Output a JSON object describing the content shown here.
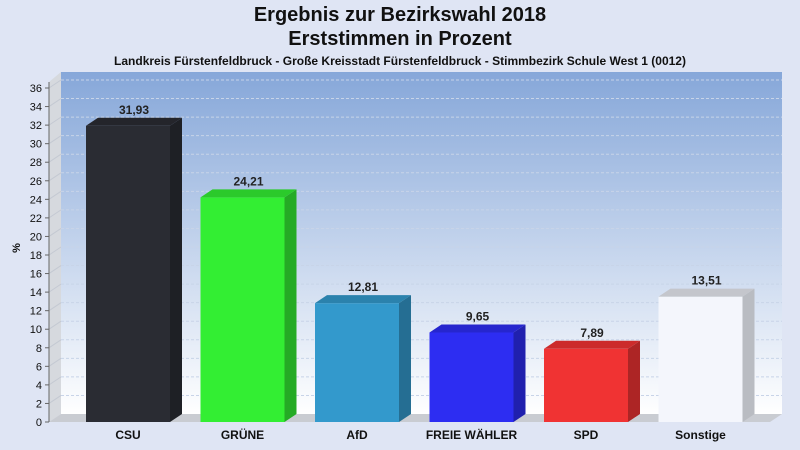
{
  "chart_data": {
    "type": "bar",
    "title": "Ergebnis zur Bezirkswahl 2018",
    "title2": "Erststimmen in Prozent",
    "subtitle": "Landkreis Fürstenfeldbruck - Große Kreisstadt Fürstenfeldbruck - Stimmbezirk Schule West 1 (0012)",
    "ylabel": "%",
    "xlabel": "",
    "ylim": [
      0,
      36
    ],
    "yticks": [
      0,
      2,
      4,
      6,
      8,
      10,
      12,
      14,
      16,
      18,
      20,
      22,
      24,
      26,
      28,
      30,
      32,
      34,
      36
    ],
    "grid": true,
    "categories": [
      "CSU",
      "GRÜNE",
      "AfD",
      "FREIE WÄHLER",
      "SPD",
      "Sonstige"
    ],
    "values": [
      31.93,
      24.21,
      12.81,
      9.65,
      7.89,
      13.51
    ],
    "value_labels": [
      "31,93",
      "24,21",
      "12,81",
      "9,65",
      "7,89",
      "13,51"
    ],
    "colors": [
      "#2a2c33",
      "#33ee33",
      "#3399cc",
      "#2d2df2",
      "#f03333",
      "#f4f6fc"
    ]
  }
}
